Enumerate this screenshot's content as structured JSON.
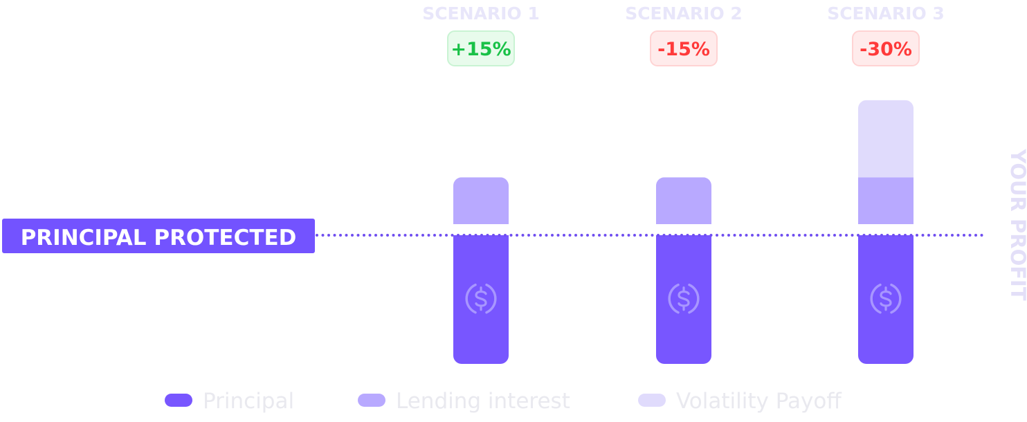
{
  "chart_data": {
    "type": "bar",
    "stacked": true,
    "categories": [
      "SCENARIO 1",
      "SCENARIO 2",
      "SCENARIO 3"
    ],
    "badges": [
      "+15%",
      "-15%",
      "-30%"
    ],
    "badge_tones": [
      "positive",
      "negative",
      "negative"
    ],
    "series": [
      {
        "name": "Principal",
        "values": [
          1.0,
          1.0,
          1.0
        ]
      },
      {
        "name": "Lending interest",
        "values": [
          0.45,
          0.45,
          0.45
        ]
      },
      {
        "name": "Volatility Payoff",
        "values": [
          0,
          0,
          0.6
        ]
      }
    ],
    "ylim": [
      0,
      2.05
    ],
    "reference_line": {
      "label": "PRINCIPAL PROTECTED",
      "value": 1.0
    },
    "side_label": "YOUR PROFIT",
    "bar_icon": "usdc-coin-icon",
    "legend_position": "bottom",
    "grid": false
  },
  "colors": {
    "principal": "#7856FF",
    "lending_interest": "#B8A9FF",
    "volatility_payoff": "#E0DBFC",
    "reference_line": "#6F4EF0",
    "reference_label_bg": "#7353FF",
    "reference_label_text": "#FFFFFF",
    "category_label": "#E8E6FA",
    "side_label": "#E3DFF8",
    "legend_text": "#E9E9EF",
    "positive_text": "#19C147",
    "positive_bg": "#E8FBEC",
    "positive_border": "#C9F3D3",
    "negative_text": "#FF3A3A",
    "negative_bg": "#FFEBEB",
    "negative_border": "#FFD3D3",
    "icon_stroke": "#A896FF"
  }
}
